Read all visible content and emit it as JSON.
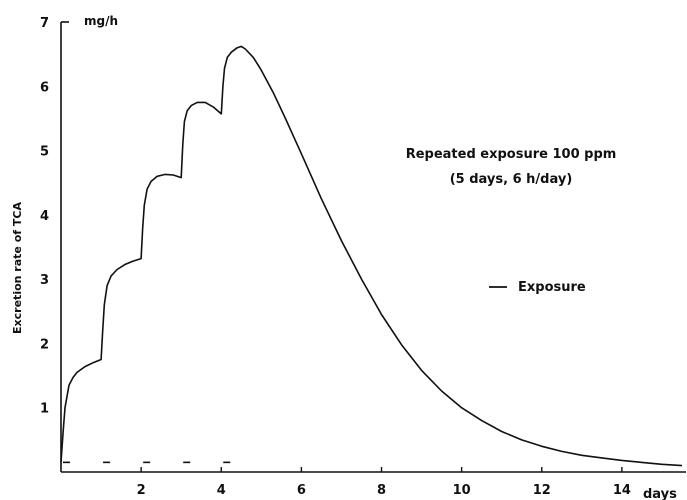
{
  "chart_data": {
    "type": "line",
    "title": "",
    "xlabel": "days",
    "ylabel": "Excretion rate of TCA",
    "y_unit": "mg/h",
    "xlim": [
      0,
      15.6
    ],
    "ylim": [
      0,
      7
    ],
    "x_ticks": [
      2,
      4,
      6,
      8,
      10,
      12,
      14
    ],
    "y_ticks": [
      1,
      2,
      3,
      4,
      5,
      6,
      7
    ],
    "grid": false,
    "annotation": {
      "line1": "Repeated exposure 100 ppm",
      "line2": "(5 days, 6 h/day)"
    },
    "legend": {
      "label": "Exposure",
      "placement": "right"
    },
    "exposures": [
      {
        "start": 0.0,
        "end": 0.25
      },
      {
        "start": 1.0,
        "end": 1.25
      },
      {
        "start": 2.0,
        "end": 2.25
      },
      {
        "start": 3.0,
        "end": 3.25
      },
      {
        "start": 4.0,
        "end": 4.25
      }
    ],
    "series": [
      {
        "x": [
          0,
          0.05,
          0.1,
          0.2,
          0.3,
          0.4,
          0.6,
          0.8,
          1.0,
          1.04,
          1.08,
          1.15,
          1.25,
          1.4,
          1.6,
          1.8,
          2.0,
          2.04,
          2.08,
          2.15,
          2.25,
          2.4,
          2.6,
          2.8,
          3.0,
          3.04,
          3.08,
          3.15,
          3.25,
          3.4,
          3.6,
          3.8,
          4.0,
          4.04,
          4.08,
          4.15,
          4.25,
          4.4,
          4.5,
          4.6,
          4.8,
          5.0,
          5.3,
          5.6,
          6.0,
          6.5,
          7.0,
          7.5,
          8.0,
          8.5,
          9.0,
          9.5,
          10.0,
          10.5,
          11.0,
          11.5,
          12.0,
          12.5,
          13.0,
          13.5,
          14.0,
          14.5,
          15.0,
          15.5
        ],
        "y": [
          0.15,
          0.6,
          1.0,
          1.35,
          1.47,
          1.55,
          1.64,
          1.7,
          1.75,
          2.2,
          2.6,
          2.9,
          3.05,
          3.15,
          3.23,
          3.28,
          3.32,
          3.8,
          4.15,
          4.4,
          4.52,
          4.6,
          4.63,
          4.62,
          4.58,
          5.1,
          5.45,
          5.62,
          5.7,
          5.75,
          5.75,
          5.68,
          5.57,
          6.0,
          6.28,
          6.45,
          6.53,
          6.6,
          6.62,
          6.58,
          6.45,
          6.25,
          5.9,
          5.5,
          4.95,
          4.25,
          3.6,
          3.0,
          2.45,
          1.98,
          1.58,
          1.26,
          1.0,
          0.8,
          0.63,
          0.5,
          0.4,
          0.32,
          0.26,
          0.22,
          0.18,
          0.15,
          0.12,
          0.1
        ]
      }
    ]
  }
}
